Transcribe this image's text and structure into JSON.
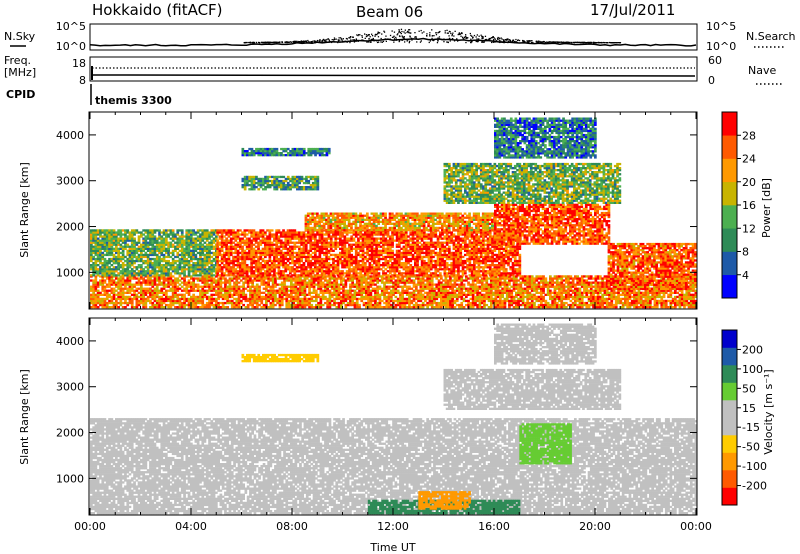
{
  "title": {
    "station": "Hokkaido (fitACF)",
    "beam": "Beam 06",
    "date": "17/Jul/2011"
  },
  "header_panels": {
    "nsky": {
      "label": "N.Sky",
      "right_label": "N.Search",
      "ticks": [
        "10^5",
        "10^0"
      ],
      "right_ticks": [
        "10^5",
        "10^0"
      ]
    },
    "freq": {
      "label_line1": "Freq.",
      "label_line2": "[MHz]",
      "ticks": [
        "18",
        "8"
      ],
      "right_label": "Nave",
      "right_ticks": [
        "60",
        "0"
      ]
    },
    "cpid": {
      "label": "CPID",
      "value": "themis 3300"
    }
  },
  "colors": {
    "power": [
      "#0000ff",
      "#1e5aa8",
      "#2e8b57",
      "#4caf50",
      "#c8b400",
      "#ff9900",
      "#ff5a00",
      "#ff0000"
    ],
    "velocity": [
      "#ff0000",
      "#ff5a00",
      "#ff9900",
      "#ffcc00",
      "#c0c0c0",
      "#c0c0c0",
      "#66cc33",
      "#2e8b57",
      "#1e5aa8",
      "#0000cc"
    ],
    "ground": "#bebebe"
  },
  "chart_data": [
    {
      "type": "heatmap",
      "name": "power",
      "xlabel": "Time UT",
      "ylabel": "Slant Range [km]",
      "xlim": [
        0,
        24
      ],
      "ylim": [
        200,
        4500
      ],
      "xticks": [
        "00:00",
        "04:00",
        "08:00",
        "12:00",
        "16:00",
        "20:00",
        "00:00"
      ],
      "yticks": [
        1000,
        2000,
        3000,
        4000
      ],
      "colorbar": {
        "label": "Power [dB]",
        "ticks": [
          "28",
          "24",
          "20",
          "16",
          "12",
          "8",
          "4"
        ],
        "range": [
          0,
          32
        ]
      },
      "regions": [
        {
          "t0": 0.0,
          "t1": 24.0,
          "r0": 200,
          "r1": 900,
          "level": 24
        },
        {
          "t0": 0.0,
          "t1": 5.0,
          "r0": 900,
          "r1": 1900,
          "level": 14
        },
        {
          "t0": 5.0,
          "t1": 17.0,
          "r0": 900,
          "r1": 1900,
          "level": 27
        },
        {
          "t0": 8.5,
          "t1": 16.0,
          "r0": 1900,
          "r1": 2300,
          "level": 22
        },
        {
          "t0": 16.0,
          "t1": 20.5,
          "r0": 1600,
          "r1": 2500,
          "level": 27
        },
        {
          "t0": 20.5,
          "t1": 24.0,
          "r0": 600,
          "r1": 1600,
          "level": 26
        },
        {
          "t0": 14.0,
          "t1": 21.0,
          "r0": 2500,
          "r1": 3400,
          "level": 14
        },
        {
          "t0": 6.0,
          "t1": 9.0,
          "r0": 2800,
          "r1": 3100,
          "level": 12
        },
        {
          "t0": 6.0,
          "t1": 9.5,
          "r0": 3550,
          "r1": 3700,
          "level": 9
        },
        {
          "t0": 16.0,
          "t1": 20.0,
          "r0": 3500,
          "r1": 4400,
          "level": 8
        }
      ]
    },
    {
      "type": "heatmap",
      "name": "velocity",
      "xlabel": "Time UT",
      "ylabel": "Slant Range [km]",
      "xlim": [
        0,
        24
      ],
      "ylim": [
        200,
        4500
      ],
      "xticks": [
        "00:00",
        "04:00",
        "08:00",
        "12:00",
        "16:00",
        "20:00",
        "00:00"
      ],
      "yticks": [
        1000,
        2000,
        3000,
        4000
      ],
      "colorbar": {
        "label": "Velocity [m s⁻¹]",
        "ticks": [
          "200",
          "100",
          "50",
          "15",
          "-15",
          "-50",
          "-100",
          "-200"
        ],
        "range": [
          -250,
          250
        ]
      },
      "regions": [
        {
          "t0": 0.0,
          "t1": 24.0,
          "r0": 200,
          "r1": 2300,
          "level": 0
        },
        {
          "t0": 14.0,
          "t1": 21.0,
          "r0": 2500,
          "r1": 3400,
          "level": 0
        },
        {
          "t0": 17.0,
          "t1": 19.0,
          "r0": 1300,
          "r1": 2200,
          "level": 40
        },
        {
          "t0": 11.0,
          "t1": 17.0,
          "r0": 200,
          "r1": 500,
          "level": 60
        },
        {
          "t0": 13.0,
          "t1": 15.0,
          "r0": 300,
          "r1": 700,
          "level": -60
        },
        {
          "t0": 6.0,
          "t1": 9.0,
          "r0": 3550,
          "r1": 3700,
          "level": -40
        },
        {
          "t0": 16.0,
          "t1": 20.0,
          "r0": 3500,
          "r1": 4400,
          "level": 0
        }
      ]
    }
  ]
}
